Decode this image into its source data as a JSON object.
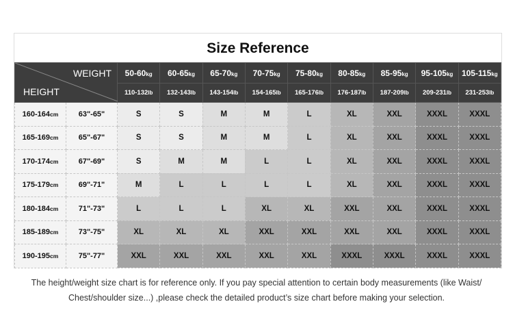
{
  "title": "Size Reference",
  "header": {
    "weight_label": "WEIGHT",
    "height_label": "HEIGHT",
    "kg": [
      [
        "50-60",
        "kg"
      ],
      [
        "60-65",
        "kg"
      ],
      [
        "65-70",
        "kg"
      ],
      [
        "70-75",
        "kg"
      ],
      [
        "75-80",
        "kg"
      ],
      [
        "80-85",
        "kg"
      ],
      [
        "85-95",
        "kg"
      ],
      [
        "95-105",
        "kg"
      ],
      [
        "105-115",
        "kg"
      ]
    ],
    "lb": [
      [
        "110-132",
        "lb"
      ],
      [
        "132-143",
        "lb"
      ],
      [
        "143-154",
        "lb"
      ],
      [
        "154-165",
        "lb"
      ],
      [
        "165-176",
        "lb"
      ],
      [
        "176-187",
        "lb"
      ],
      [
        "187-209",
        "lb"
      ],
      [
        "209-231",
        "lb"
      ],
      [
        "231-253",
        "lb"
      ]
    ]
  },
  "rows": [
    {
      "cm": "160-164",
      "unit": "cm",
      "inch": "63\"-65\"",
      "sizes": [
        "S",
        "S",
        "M",
        "M",
        "L",
        "XL",
        "XXL",
        "XXXL",
        "XXXL"
      ]
    },
    {
      "cm": "165-169",
      "unit": "cm",
      "inch": "65\"-67\"",
      "sizes": [
        "S",
        "S",
        "M",
        "M",
        "L",
        "XL",
        "XXL",
        "XXXL",
        "XXXL"
      ]
    },
    {
      "cm": "170-174",
      "unit": "cm",
      "inch": "67\"-69\"",
      "sizes": [
        "S",
        "M",
        "M",
        "L",
        "L",
        "XL",
        "XXL",
        "XXXL",
        "XXXL"
      ]
    },
    {
      "cm": "175-179",
      "unit": "cm",
      "inch": "69\"-71\"",
      "sizes": [
        "M",
        "L",
        "L",
        "L",
        "L",
        "XL",
        "XXL",
        "XXXL",
        "XXXL"
      ]
    },
    {
      "cm": "180-184",
      "unit": "cm",
      "inch": "71\"-73\"",
      "sizes": [
        "L",
        "L",
        "L",
        "XL",
        "XL",
        "XXL",
        "XXL",
        "XXXL",
        "XXXL"
      ]
    },
    {
      "cm": "185-189",
      "unit": "cm",
      "inch": "73\"-75\"",
      "sizes": [
        "XL",
        "XL",
        "XL",
        "XXL",
        "XXL",
        "XXL",
        "XXL",
        "XXXL",
        "XXXL"
      ]
    },
    {
      "cm": "190-195",
      "unit": "cm",
      "inch": "75\"-77\"",
      "sizes": [
        "XXL",
        "XXL",
        "XXL",
        "XXL",
        "XXL",
        "XXXL",
        "XXXL",
        "XXXL",
        "XXXL"
      ]
    }
  ],
  "size_colors": {
    "S": "#ececec",
    "M": "#dedede",
    "L": "#cbcbcb",
    "XL": "#b7b7b7",
    "XXL": "#a4a4a4",
    "XXXL": "#8e8e8e"
  },
  "note": {
    "line1": "The height/weight size chart is for reference only. If you pay special attention to certain body measurements  (like Waist/",
    "line2": "Chest/shoulder size...)  ,please check the detailed product’s size chart before making your selection."
  }
}
